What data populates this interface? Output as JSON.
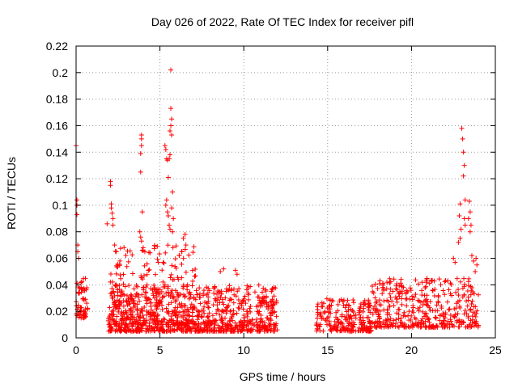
{
  "chart_data": {
    "type": "scatter",
    "title": "Day 026 of 2022, Rate Of TEC Index for receiver pifl",
    "xlabel": "GPS time / hours",
    "ylabel": "ROTI / TECUs",
    "xlim": [
      0,
      25
    ],
    "ylim": [
      0,
      0.22
    ],
    "grid": true,
    "marker": "+",
    "x_ticks": [
      0,
      5,
      10,
      15,
      20,
      25
    ],
    "x_tick_labels": [
      "0",
      "5",
      "10",
      "15",
      "20",
      "25"
    ],
    "y_ticks": [
      0,
      0.02,
      0.04,
      0.06,
      0.08,
      0.1,
      0.12,
      0.14,
      0.16,
      0.18,
      0.2,
      0.22
    ],
    "y_tick_labels": [
      "0",
      "0.02",
      "0.04",
      "0.06",
      "0.08",
      "0.1",
      "0.12",
      "0.14",
      "0.16",
      "0.18",
      "0.2",
      "0.22"
    ],
    "series": [
      {
        "name": "ROTI",
        "color": "#ff0000",
        "bands": [
          {
            "x": [
              0.0,
              0.7
            ],
            "y": [
              0.015,
              0.045
            ],
            "n": 60
          },
          {
            "x": [
              1.9,
              12.0
            ],
            "y": [
              0.005,
              0.04
            ],
            "n": 900
          },
          {
            "x": [
              2.0,
              7.2
            ],
            "y": [
              0.01,
              0.07
            ],
            "n": 240
          },
          {
            "x": [
              14.3,
              17.6
            ],
            "y": [
              0.005,
              0.03
            ],
            "n": 220
          },
          {
            "x": [
              17.5,
              24.0
            ],
            "y": [
              0.008,
              0.045
            ],
            "n": 420
          }
        ],
        "spikes": [
          [
            0.0,
            0.145
          ],
          [
            0.05,
            0.104
          ],
          [
            0.05,
            0.1
          ],
          [
            0.05,
            0.093
          ],
          [
            0.1,
            0.07
          ],
          [
            0.1,
            0.065
          ],
          [
            0.15,
            0.06
          ],
          [
            1.85,
            0.086
          ],
          [
            2.05,
            0.118
          ],
          [
            2.05,
            0.115
          ],
          [
            2.1,
            0.101
          ],
          [
            2.1,
            0.098
          ],
          [
            2.15,
            0.094
          ],
          [
            2.2,
            0.09
          ],
          [
            2.2,
            0.085
          ],
          [
            2.3,
            0.07
          ],
          [
            2.4,
            0.065
          ],
          [
            3.9,
            0.153
          ],
          [
            3.9,
            0.15
          ],
          [
            3.9,
            0.145
          ],
          [
            3.85,
            0.139
          ],
          [
            3.85,
            0.125
          ],
          [
            3.95,
            0.095
          ],
          [
            3.8,
            0.08
          ],
          [
            3.85,
            0.076
          ],
          [
            3.9,
            0.073
          ],
          [
            4.0,
            0.068
          ],
          [
            4.1,
            0.065
          ],
          [
            5.3,
            0.145
          ],
          [
            5.35,
            0.142
          ],
          [
            5.4,
            0.135
          ],
          [
            5.45,
            0.134
          ],
          [
            5.5,
            0.121
          ],
          [
            5.4,
            0.104
          ],
          [
            5.35,
            0.1
          ],
          [
            5.45,
            0.095
          ],
          [
            5.5,
            0.092
          ],
          [
            5.55,
            0.085
          ],
          [
            5.6,
            0.082
          ],
          [
            5.65,
            0.202
          ],
          [
            5.65,
            0.173
          ],
          [
            5.7,
            0.165
          ],
          [
            5.65,
            0.16
          ],
          [
            5.6,
            0.156
          ],
          [
            5.7,
            0.153
          ],
          [
            5.6,
            0.138
          ],
          [
            5.55,
            0.135
          ],
          [
            5.75,
            0.11
          ],
          [
            5.7,
            0.098
          ],
          [
            5.8,
            0.09
          ],
          [
            5.75,
            0.08
          ],
          [
            6.5,
            0.078
          ],
          [
            6.4,
            0.075
          ],
          [
            6.55,
            0.07
          ],
          [
            6.3,
            0.065
          ],
          [
            8.6,
            0.05
          ],
          [
            8.8,
            0.052
          ],
          [
            9.5,
            0.051
          ],
          [
            9.6,
            0.048
          ],
          [
            11.7,
            0.037
          ],
          [
            11.8,
            0.038
          ],
          [
            22.6,
            0.057
          ],
          [
            22.5,
            0.06
          ],
          [
            22.8,
            0.072
          ],
          [
            22.9,
            0.101
          ],
          [
            22.85,
            0.092
          ],
          [
            22.95,
            0.082
          ],
          [
            22.9,
            0.075
          ],
          [
            23.0,
            0.158
          ],
          [
            23.05,
            0.15
          ],
          [
            23.1,
            0.14
          ],
          [
            23.15,
            0.13
          ],
          [
            23.1,
            0.122
          ],
          [
            23.2,
            0.104
          ],
          [
            23.15,
            0.09
          ],
          [
            23.2,
            0.085
          ],
          [
            23.45,
            0.103
          ],
          [
            23.5,
            0.095
          ],
          [
            23.4,
            0.09
          ],
          [
            23.55,
            0.085
          ],
          [
            23.5,
            0.08
          ],
          [
            23.6,
            0.062
          ],
          [
            23.7,
            0.058
          ],
          [
            23.85,
            0.06
          ],
          [
            23.9,
            0.055
          ],
          [
            23.8,
            0.05
          ]
        ]
      }
    ]
  }
}
